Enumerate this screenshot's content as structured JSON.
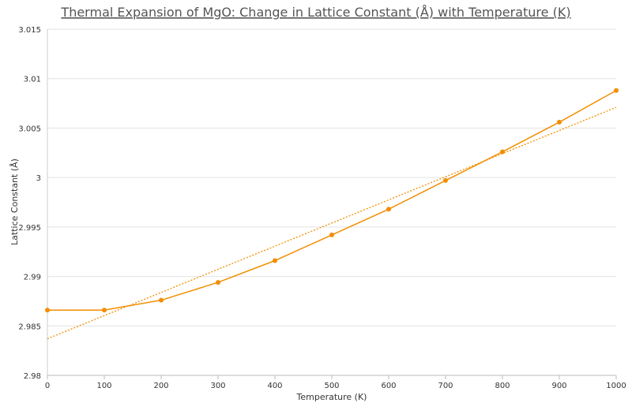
{
  "chart_data": {
    "type": "line",
    "title": "Thermal Expansion of MgO: Change in Lattice Constant (Å) with Temperature (K)",
    "xlabel": "Temperature (K)",
    "ylabel": "Lattice Constant (Å)",
    "xlim": [
      0,
      1000
    ],
    "ylim": [
      2.98,
      3.015
    ],
    "x_ticks": [
      "0",
      "100",
      "200",
      "300",
      "400",
      "500",
      "600",
      "700",
      "800",
      "900",
      "1000"
    ],
    "y_ticks": [
      "2.98",
      "2.985",
      "2.99",
      "2.995",
      "3",
      "3.005",
      "3.01",
      "3.015"
    ],
    "grid": "horizontal",
    "color": "#f28e00",
    "series": [
      {
        "x": [
          0,
          100,
          200,
          300,
          400,
          500,
          600,
          700,
          800,
          900,
          1000
        ],
        "y": [
          2.9866,
          2.9866,
          2.9876,
          2.9894,
          2.9916,
          2.9942,
          2.9968,
          2.9997,
          3.0026,
          3.0056,
          3.0088
        ]
      }
    ],
    "trendline": {
      "type": "linear",
      "x": [
        0,
        1000
      ],
      "y": [
        2.9837,
        3.0071
      ]
    }
  }
}
